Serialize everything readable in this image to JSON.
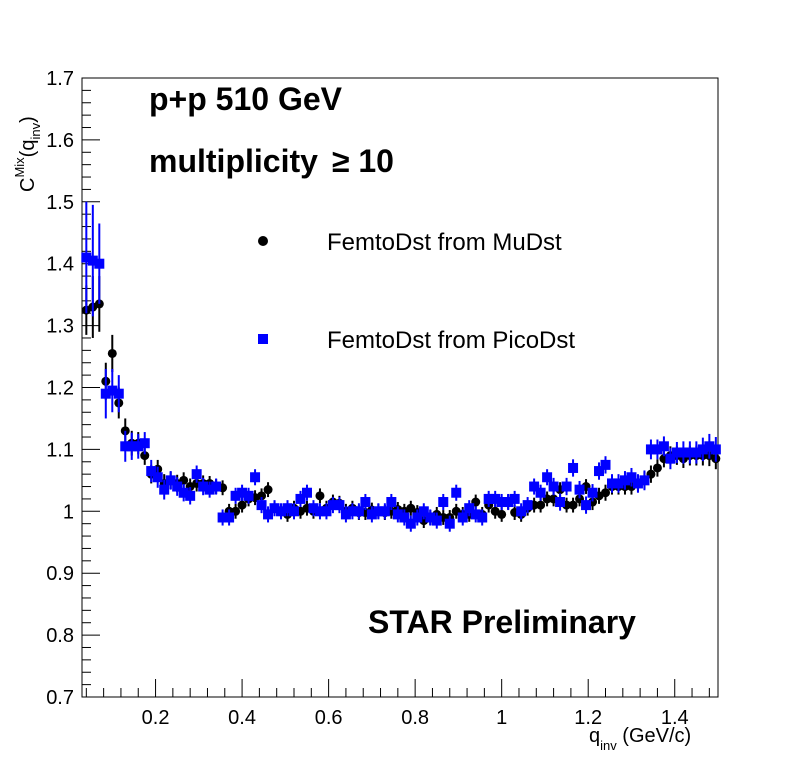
{
  "chart_data": {
    "type": "scatter",
    "title": "",
    "xlim": [
      0.03,
      1.5
    ],
    "ylim": [
      0.7,
      1.7
    ],
    "x_ticks": [
      0.2,
      0.4,
      0.6,
      0.8,
      1.0,
      1.2,
      1.4
    ],
    "x_tick_labels": [
      "0.2",
      "0.4",
      "0.6",
      "0.8",
      "1",
      "1.2",
      "1.4"
    ],
    "y_ticks": [
      0.7,
      0.8,
      0.9,
      1.0,
      1.1,
      1.2,
      1.3,
      1.4,
      1.5,
      1.6,
      1.7
    ],
    "y_tick_labels": [
      "0.7",
      "0.8",
      "0.9",
      "1",
      "1.1",
      "1.2",
      "1.3",
      "1.4",
      "1.5",
      "1.6",
      "1.7"
    ],
    "xlabel": {
      "main": "q",
      "sub": "inv",
      "rest": " (GeV/c)"
    },
    "ylabel": {
      "main": "C",
      "sup": "Mix",
      "open": "(q",
      "sub": "inv",
      "close": ")"
    },
    "annotations": {
      "collision": "p+p 510 GeV",
      "multiplicity": "multiplicity",
      "multiplicity_cut": "≥ 10",
      "preliminary": "STAR Preliminary"
    },
    "grid": false,
    "legend_position": "upper-middle",
    "series": [
      {
        "name": "FemtoDst from MuDst",
        "marker": "circle",
        "color": "#000000",
        "x": [
          0.04,
          0.055,
          0.07,
          0.085,
          0.1,
          0.115,
          0.13,
          0.145,
          0.16,
          0.175,
          0.19,
          0.205,
          0.22,
          0.235,
          0.25,
          0.265,
          0.28,
          0.295,
          0.31,
          0.325,
          0.34,
          0.355,
          0.37,
          0.385,
          0.4,
          0.415,
          0.43,
          0.445,
          0.46,
          0.475,
          0.49,
          0.505,
          0.52,
          0.535,
          0.55,
          0.565,
          0.58,
          0.595,
          0.61,
          0.625,
          0.64,
          0.655,
          0.67,
          0.685,
          0.7,
          0.715,
          0.73,
          0.745,
          0.76,
          0.775,
          0.79,
          0.805,
          0.82,
          0.835,
          0.85,
          0.865,
          0.88,
          0.895,
          0.91,
          0.925,
          0.94,
          0.955,
          0.97,
          0.985,
          1.0,
          1.015,
          1.03,
          1.045,
          1.06,
          1.075,
          1.09,
          1.105,
          1.12,
          1.135,
          1.15,
          1.165,
          1.18,
          1.195,
          1.21,
          1.225,
          1.24,
          1.255,
          1.27,
          1.285,
          1.3,
          1.315,
          1.33,
          1.345,
          1.36,
          1.375,
          1.39,
          1.405,
          1.42,
          1.435,
          1.45,
          1.465,
          1.48,
          1.495
        ],
        "y": [
          1.325,
          1.33,
          1.335,
          1.21,
          1.255,
          1.175,
          1.13,
          1.11,
          1.11,
          1.09,
          1.06,
          1.068,
          1.045,
          1.05,
          1.045,
          1.05,
          1.04,
          1.045,
          1.045,
          1.045,
          1.04,
          1.038,
          1.0,
          1.0,
          1.01,
          1.02,
          1.022,
          1.025,
          1.035,
          1.005,
          1.0,
          0.995,
          1.005,
          1.0,
          1.005,
          1.0,
          1.025,
          1.005,
          1.015,
          1.013,
          1.0,
          1.005,
          0.998,
          0.998,
          1.002,
          1.0,
          0.998,
          1.0,
          1.003,
          1.0,
          1.005,
          0.998,
          0.985,
          0.99,
          0.995,
          0.99,
          0.99,
          1.0,
          0.995,
          0.995,
          1.015,
          0.995,
          1.01,
          1.0,
          0.995,
          1.015,
          0.998,
          0.995,
          1.005,
          1.01,
          1.01,
          1.02,
          1.02,
          1.035,
          1.01,
          1.01,
          1.02,
          1.04,
          1.015,
          1.025,
          1.03,
          1.04,
          1.04,
          1.04,
          1.04,
          1.045,
          1.05,
          1.06,
          1.07,
          1.085,
          1.09,
          1.09,
          1.085,
          1.09,
          1.09,
          1.09,
          1.09,
          1.085
        ],
        "yerr": [
          0.04,
          0.05,
          0.045,
          0.03,
          0.03,
          0.025,
          0.02,
          0.02,
          0.018,
          0.015,
          0.015,
          0.015,
          0.015,
          0.014,
          0.014,
          0.013,
          0.013,
          0.013,
          0.013,
          0.012,
          0.012,
          0.012,
          0.012,
          0.012,
          0.012,
          0.012,
          0.012,
          0.012,
          0.012,
          0.012,
          0.012,
          0.012,
          0.012,
          0.012,
          0.012,
          0.012,
          0.012,
          0.012,
          0.012,
          0.012,
          0.012,
          0.012,
          0.012,
          0.012,
          0.012,
          0.012,
          0.012,
          0.012,
          0.012,
          0.012,
          0.012,
          0.012,
          0.012,
          0.012,
          0.012,
          0.012,
          0.012,
          0.012,
          0.012,
          0.012,
          0.012,
          0.012,
          0.012,
          0.012,
          0.012,
          0.012,
          0.012,
          0.012,
          0.012,
          0.012,
          0.012,
          0.012,
          0.012,
          0.012,
          0.012,
          0.012,
          0.012,
          0.012,
          0.013,
          0.013,
          0.013,
          0.013,
          0.013,
          0.013,
          0.013,
          0.013,
          0.014,
          0.014,
          0.014,
          0.014,
          0.015,
          0.015,
          0.015,
          0.016,
          0.016,
          0.016,
          0.017,
          0.017
        ]
      },
      {
        "name": "FemtoDst from PicoDst",
        "marker": "square",
        "color": "#0000ff",
        "x": [
          0.04,
          0.055,
          0.07,
          0.085,
          0.1,
          0.115,
          0.13,
          0.145,
          0.16,
          0.175,
          0.19,
          0.205,
          0.22,
          0.235,
          0.25,
          0.265,
          0.28,
          0.295,
          0.31,
          0.325,
          0.34,
          0.355,
          0.37,
          0.385,
          0.4,
          0.415,
          0.43,
          0.445,
          0.46,
          0.475,
          0.49,
          0.505,
          0.52,
          0.535,
          0.55,
          0.565,
          0.58,
          0.595,
          0.61,
          0.625,
          0.64,
          0.655,
          0.67,
          0.685,
          0.7,
          0.715,
          0.73,
          0.745,
          0.76,
          0.775,
          0.79,
          0.805,
          0.82,
          0.835,
          0.85,
          0.865,
          0.88,
          0.895,
          0.91,
          0.925,
          0.94,
          0.955,
          0.97,
          0.985,
          1.0,
          1.015,
          1.03,
          1.045,
          1.06,
          1.075,
          1.09,
          1.105,
          1.12,
          1.135,
          1.15,
          1.165,
          1.18,
          1.195,
          1.21,
          1.225,
          1.24,
          1.255,
          1.27,
          1.285,
          1.3,
          1.315,
          1.33,
          1.345,
          1.36,
          1.375,
          1.39,
          1.405,
          1.42,
          1.435,
          1.45,
          1.465,
          1.48,
          1.495
        ],
        "y": [
          1.41,
          1.405,
          1.4,
          1.19,
          1.195,
          1.19,
          1.105,
          1.105,
          1.105,
          1.11,
          1.065,
          1.055,
          1.035,
          1.05,
          1.04,
          1.03,
          1.025,
          1.06,
          1.04,
          1.035,
          1.04,
          0.99,
          0.99,
          1.025,
          1.03,
          1.025,
          1.055,
          1.01,
          0.995,
          1.005,
          1.0,
          1.005,
          1.0,
          1.02,
          1.03,
          1.005,
          1.0,
          1.0,
          1.01,
          1.01,
          0.995,
          1.0,
          1.0,
          1.015,
          0.995,
          1.0,
          1.0,
          1.015,
          0.995,
          0.99,
          0.98,
          0.99,
          1.0,
          0.99,
          0.985,
          1.015,
          0.98,
          1.03,
          0.99,
          1.005,
          0.995,
          0.99,
          1.02,
          1.02,
          1.015,
          1.015,
          1.02,
          1.0,
          1.01,
          1.04,
          1.03,
          1.055,
          1.04,
          1.015,
          1.04,
          1.07,
          1.035,
          1.01,
          1.03,
          1.065,
          1.075,
          1.045,
          1.045,
          1.05,
          1.055,
          1.045,
          1.05,
          1.1,
          1.1,
          1.105,
          1.085,
          1.095,
          1.095,
          1.095,
          1.095,
          1.1,
          1.105,
          1.1
        ],
        "yerr": [
          0.09,
          0.09,
          0.065,
          0.04,
          0.035,
          0.03,
          0.025,
          0.022,
          0.02,
          0.018,
          0.018,
          0.017,
          0.016,
          0.015,
          0.015,
          0.014,
          0.014,
          0.014,
          0.014,
          0.013,
          0.013,
          0.013,
          0.013,
          0.013,
          0.013,
          0.013,
          0.013,
          0.013,
          0.013,
          0.013,
          0.013,
          0.013,
          0.013,
          0.013,
          0.013,
          0.013,
          0.013,
          0.013,
          0.013,
          0.013,
          0.013,
          0.013,
          0.013,
          0.013,
          0.013,
          0.013,
          0.013,
          0.013,
          0.013,
          0.013,
          0.013,
          0.013,
          0.013,
          0.013,
          0.013,
          0.013,
          0.013,
          0.013,
          0.013,
          0.013,
          0.013,
          0.013,
          0.013,
          0.013,
          0.013,
          0.013,
          0.013,
          0.013,
          0.013,
          0.013,
          0.013,
          0.013,
          0.014,
          0.014,
          0.014,
          0.014,
          0.014,
          0.014,
          0.014,
          0.014,
          0.014,
          0.015,
          0.015,
          0.015,
          0.015,
          0.015,
          0.016,
          0.016,
          0.016,
          0.016,
          0.017,
          0.017,
          0.018,
          0.018,
          0.018,
          0.019,
          0.02,
          0.02
        ]
      }
    ]
  }
}
